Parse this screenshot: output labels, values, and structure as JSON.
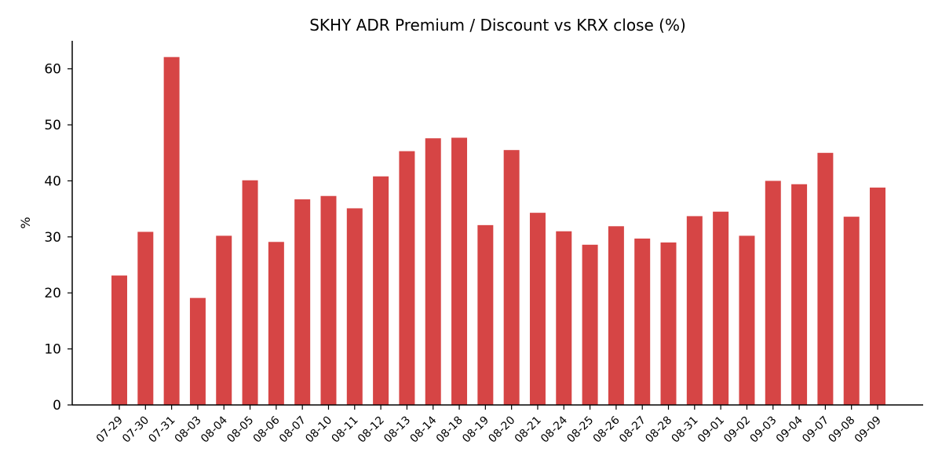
{
  "chart_data": {
    "type": "bar",
    "title": "SKHY ADR Premium / Discount vs KRX close (%)",
    "xlabel": "",
    "ylabel": "%",
    "ylim": [
      0,
      65
    ],
    "yticks": [
      0,
      10,
      20,
      30,
      40,
      50,
      60
    ],
    "grid": false,
    "bar_color": "#d64545",
    "categories": [
      "07-29",
      "07-30",
      "07-31",
      "08-03",
      "08-04",
      "08-05",
      "08-06",
      "08-07",
      "08-10",
      "08-11",
      "08-12",
      "08-13",
      "08-14",
      "08-18",
      "08-19",
      "08-20",
      "08-21",
      "08-24",
      "08-25",
      "08-26",
      "08-27",
      "08-28",
      "08-31",
      "09-01",
      "09-02",
      "09-03",
      "09-04",
      "09-07",
      "09-08",
      "09-09"
    ],
    "values": [
      23.1,
      30.9,
      62.1,
      19.1,
      30.2,
      40.1,
      29.1,
      36.7,
      37.3,
      35.1,
      40.8,
      45.3,
      47.6,
      47.7,
      32.1,
      45.5,
      34.3,
      31.0,
      28.6,
      31.9,
      29.7,
      29.0,
      33.7,
      34.5,
      30.2,
      40.0,
      39.4,
      45.0,
      33.6,
      38.8
    ]
  }
}
